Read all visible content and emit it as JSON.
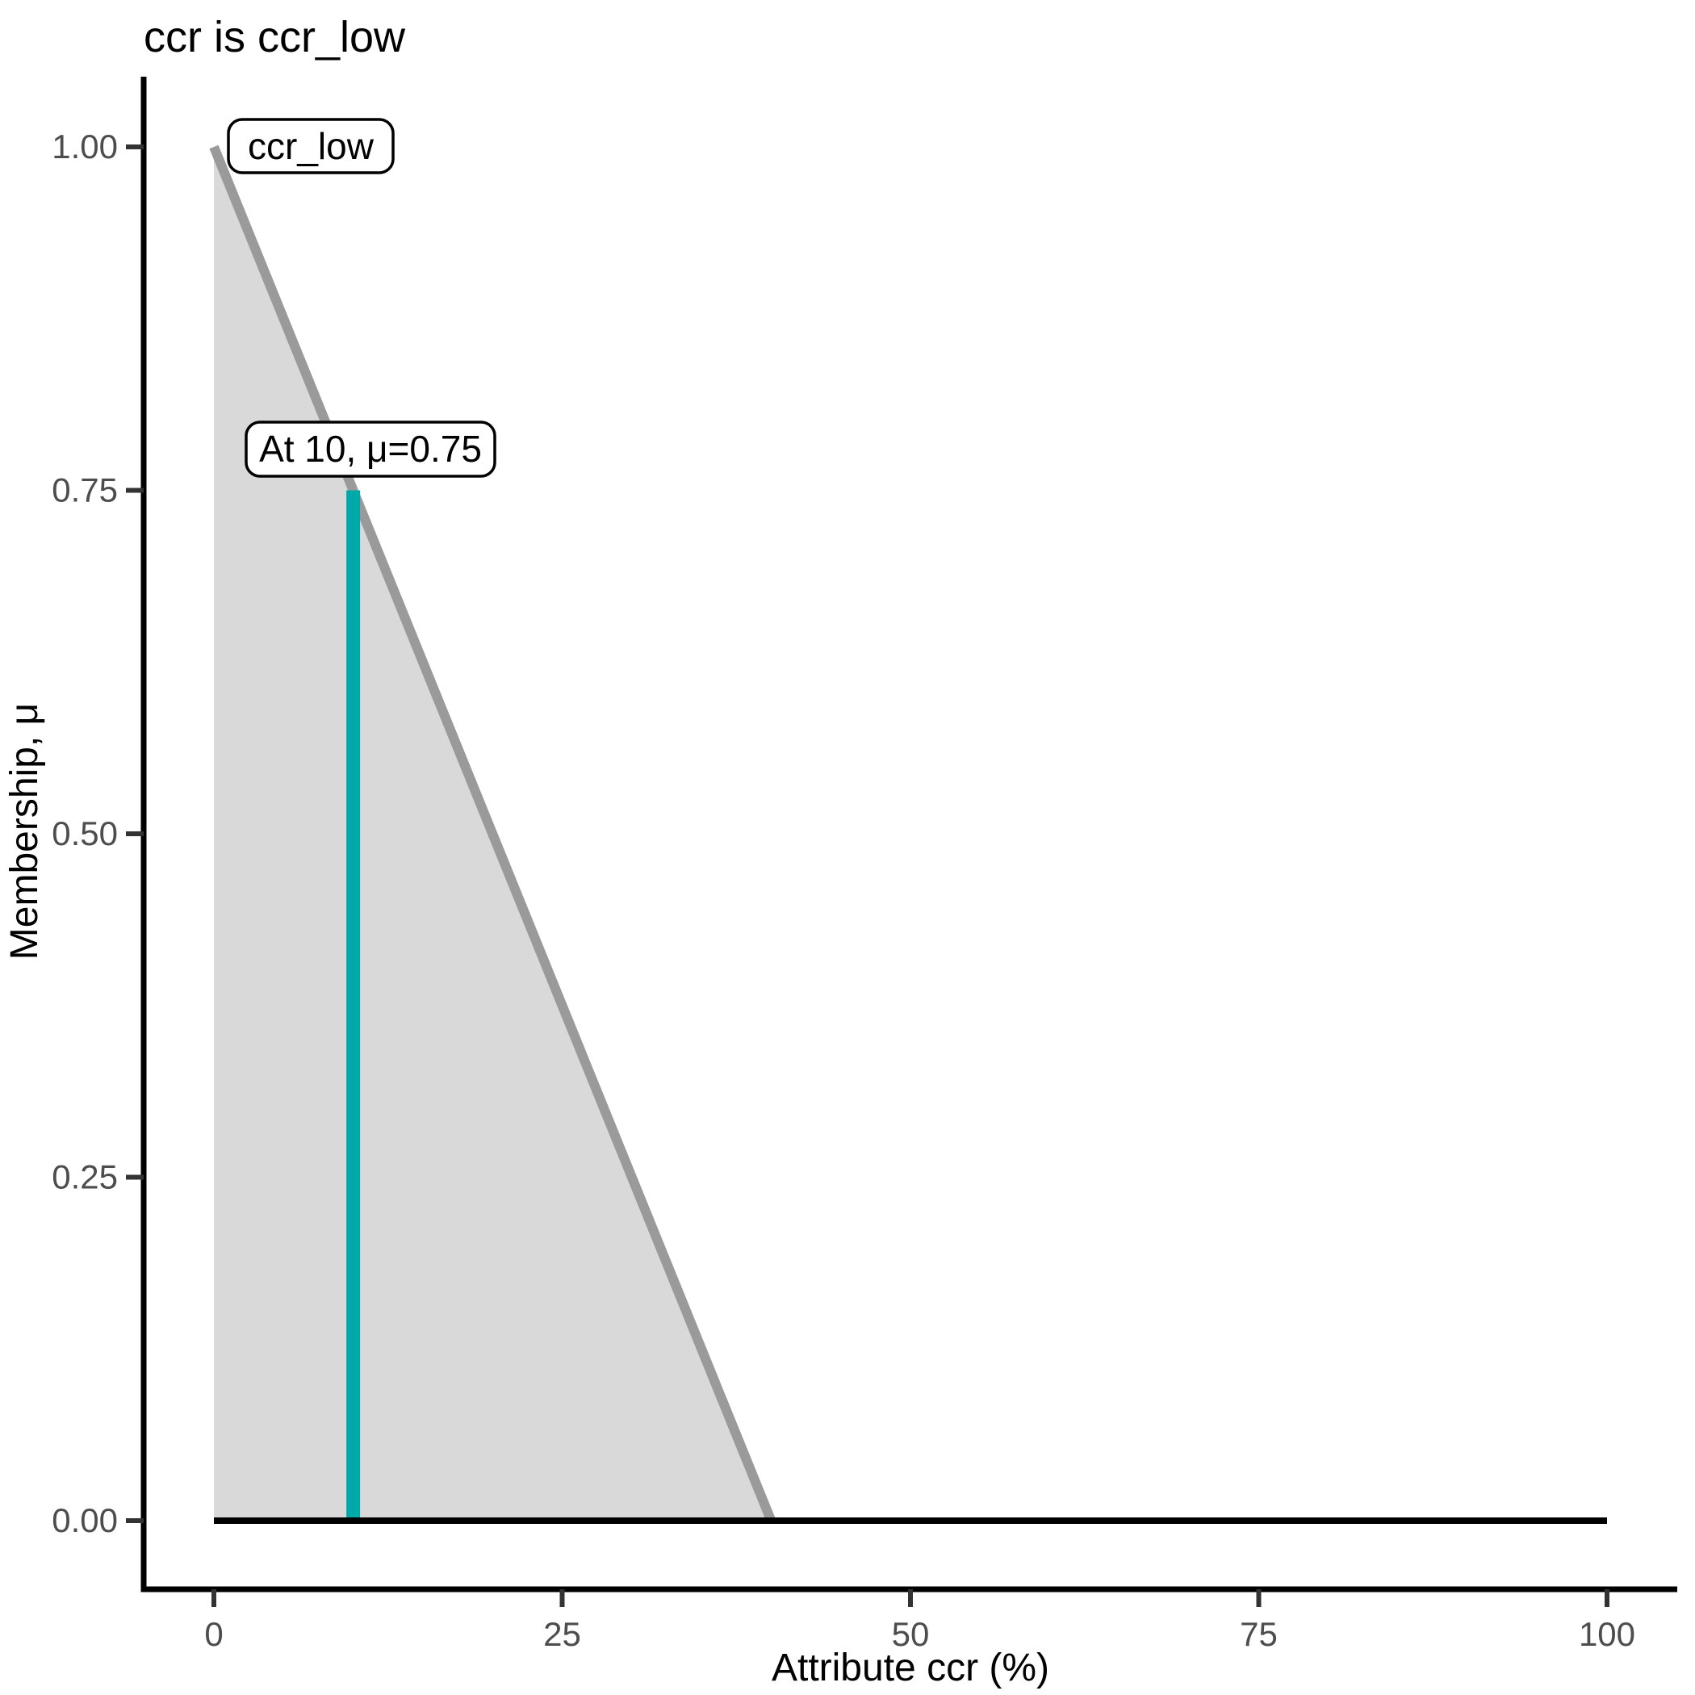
{
  "chart_data": {
    "type": "area",
    "title": "ccr is ccr_low",
    "xlabel": "Attribute ccr (%)",
    "ylabel": "Membership, μ",
    "xlim": [
      0,
      100
    ],
    "ylim": [
      0,
      1
    ],
    "grid": "off",
    "x_ticks": [
      {
        "value": 0,
        "label": "0"
      },
      {
        "value": 25,
        "label": "25"
      },
      {
        "value": 50,
        "label": "50"
      },
      {
        "value": 75,
        "label": "75"
      },
      {
        "value": 100,
        "label": "100"
      }
    ],
    "y_ticks": [
      {
        "value": 0.0,
        "label": "0.00"
      },
      {
        "value": 0.25,
        "label": "0.25"
      },
      {
        "value": 0.5,
        "label": "0.50"
      },
      {
        "value": 0.75,
        "label": "0.75"
      },
      {
        "value": 1.0,
        "label": "1.00"
      }
    ],
    "series": [
      {
        "name": "ccr_low",
        "role": "membership-function",
        "points": [
          {
            "x": 0,
            "mu": 1.0
          },
          {
            "x": 40,
            "mu": 0.0
          }
        ],
        "fill_polygon": [
          {
            "x": 0,
            "mu": 0.0
          },
          {
            "x": 0,
            "mu": 1.0
          },
          {
            "x": 40,
            "mu": 0.0
          }
        ]
      },
      {
        "name": "universe-baseline",
        "role": "baseline",
        "points": [
          {
            "x": 0,
            "mu": 0.0
          },
          {
            "x": 100,
            "mu": 0.0
          }
        ]
      },
      {
        "name": "evaluation-marker",
        "role": "vertical-marker",
        "x": 10,
        "mu": 0.75
      }
    ],
    "annotations": [
      {
        "id": "function-label",
        "text": "ccr_low"
      },
      {
        "id": "marker-label",
        "text": "At 10, μ=0.75"
      }
    ],
    "colors": {
      "membership_fill": "#d9d9d9",
      "membership_line": "#9a9a9a",
      "marker_line": "#00a9a9",
      "baseline": "#000000",
      "axis_line": "#000000",
      "tick_mark": "#333333",
      "tick_label": "#4d4d4d",
      "text": "#000000",
      "label_box_fill": "#ffffff",
      "label_box_border": "#000000"
    }
  }
}
